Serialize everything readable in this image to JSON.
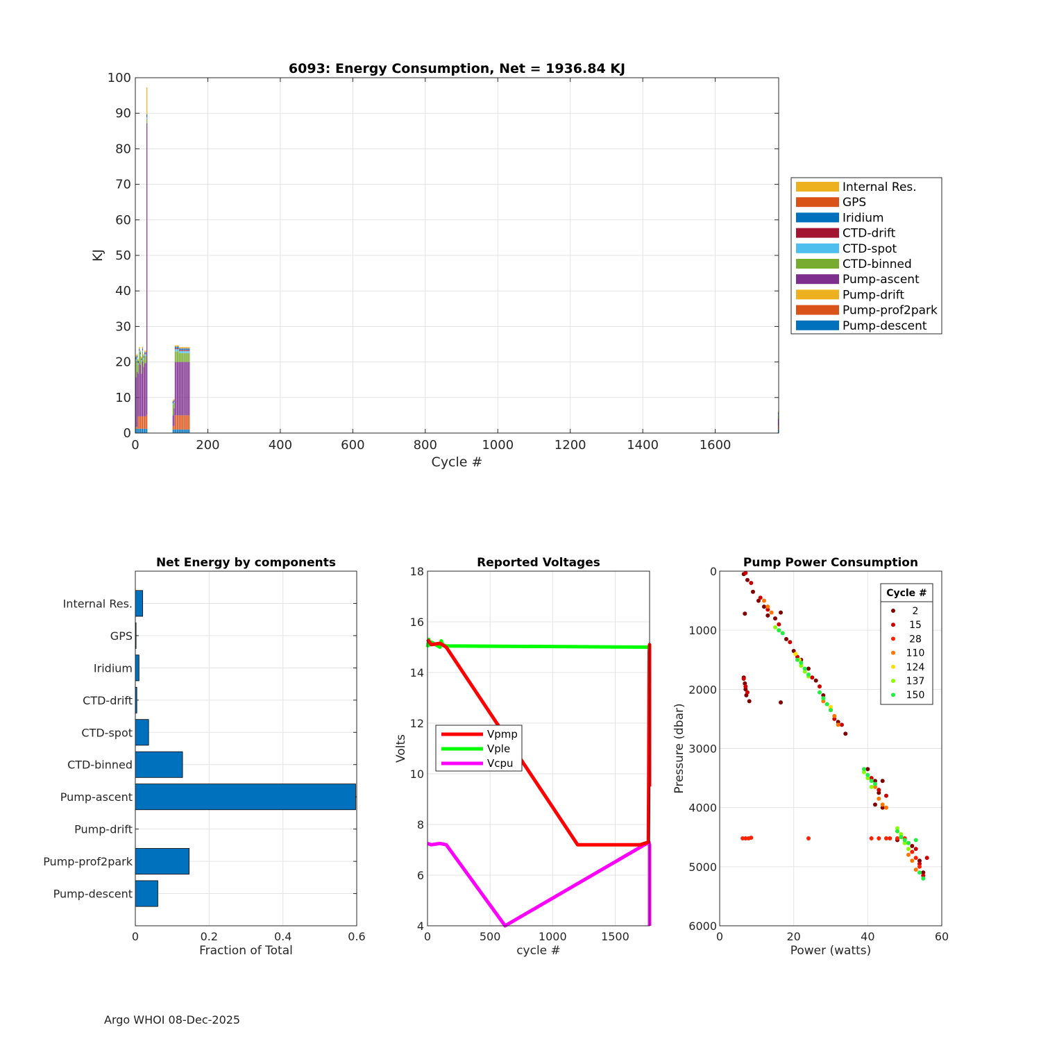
{
  "chart_data": [
    {
      "type": "bar",
      "stacked": true,
      "title": "6093: Energy Consumption,  Net = 1936.84 KJ",
      "xlabel": "Cycle #",
      "ylabel": "KJ",
      "xlim": [
        0,
        1775
      ],
      "ylim": [
        0,
        100
      ],
      "xticks": [
        0,
        200,
        400,
        600,
        800,
        1000,
        1200,
        1400,
        1600
      ],
      "yticks": [
        0,
        10,
        20,
        30,
        40,
        50,
        60,
        70,
        80,
        90,
        100
      ],
      "legend_position": "right-outside",
      "legend": [
        {
          "name": "Internal Res.",
          "color": "#EDB120"
        },
        {
          "name": "GPS",
          "color": "#D95319"
        },
        {
          "name": "Iridium",
          "color": "#0072BD"
        },
        {
          "name": "CTD-drift",
          "color": "#A2142F"
        },
        {
          "name": "CTD-spot",
          "color": "#4DBEEE"
        },
        {
          "name": "CTD-binned",
          "color": "#77AC30"
        },
        {
          "name": "Pump-ascent",
          "color": "#7E2F8E"
        },
        {
          "name": "Pump-drift",
          "color": "#EDB120"
        },
        {
          "name": "Pump-prof2park",
          "color": "#D95319"
        },
        {
          "name": "Pump-descent",
          "color": "#0072BD"
        }
      ],
      "stack_order": [
        "Pump-descent",
        "Pump-prof2park",
        "Pump-drift",
        "Pump-ascent",
        "CTD-binned",
        "CTD-spot",
        "CTD-drift",
        "Iridium",
        "GPS",
        "Internal Res."
      ],
      "x": [
        2,
        5,
        8,
        11,
        14,
        17,
        20,
        23,
        26,
        29,
        32,
        104,
        107,
        110,
        113,
        116,
        119,
        122,
        125,
        128,
        131,
        134,
        137,
        140,
        143,
        146,
        149,
        1774
      ],
      "stacks": [
        [
          1.2,
          0.5,
          0,
          14.0,
          4.5,
          0.6,
          0.2,
          0.4,
          0.1,
          0.4
        ],
        [
          1.2,
          0.5,
          0,
          15.5,
          3.6,
          0.5,
          0.2,
          0.3,
          0.1,
          0.4
        ],
        [
          1.2,
          3.5,
          0,
          12.0,
          2.5,
          0.5,
          0.2,
          0.4,
          0.1,
          0.4
        ],
        [
          1.2,
          3.5,
          0,
          15.0,
          3.0,
          0.5,
          0.2,
          0.3,
          0.1,
          0.4
        ],
        [
          1.2,
          3.5,
          0,
          14.5,
          2.5,
          0.5,
          0.2,
          0.3,
          0.1,
          0.4
        ],
        [
          1.2,
          3.5,
          0,
          12.0,
          3.3,
          0.5,
          0.2,
          0.3,
          0.1,
          0.4
        ],
        [
          1.2,
          3.5,
          0,
          15.5,
          2.6,
          0.5,
          0.2,
          0.3,
          0.1,
          0.4
        ],
        [
          1.2,
          3.5,
          0,
          14.0,
          2.0,
          0.5,
          0.2,
          0.3,
          0.1,
          0.4
        ],
        [
          1.2,
          3.5,
          0,
          15.0,
          2.0,
          0.5,
          0.2,
          0.3,
          0.1,
          0.4
        ],
        [
          1.2,
          3.5,
          0,
          15.0,
          2.0,
          0.5,
          0.2,
          0.3,
          0.1,
          0.4
        ],
        [
          1.2,
          4.0,
          0,
          82.0,
          1.2,
          0.5,
          0.3,
          0.5,
          0.1,
          7.5
        ],
        [
          1.0,
          1.0,
          0,
          3.0,
          3.0,
          0.4,
          0.2,
          0.3,
          0.1,
          0.3
        ],
        [
          1.0,
          1.0,
          0,
          5.0,
          1.5,
          0.3,
          0.1,
          0.3,
          0.1,
          0.3
        ],
        [
          1.0,
          4.0,
          0,
          15.0,
          3.0,
          0.6,
          0.3,
          0.4,
          0.1,
          0.3
        ],
        [
          1.0,
          4.0,
          0,
          15.0,
          3.0,
          0.6,
          0.3,
          0.4,
          0.1,
          0.3
        ],
        [
          1.0,
          4.0,
          0,
          15.0,
          3.0,
          0.6,
          0.3,
          0.4,
          0.1,
          0.3
        ],
        [
          1.0,
          4.0,
          0,
          15.0,
          3.0,
          0.6,
          0.3,
          0.4,
          0.1,
          0.3
        ],
        [
          1.0,
          4.0,
          0,
          15.0,
          2.5,
          0.6,
          0.3,
          0.4,
          0.1,
          0.3
        ],
        [
          1.0,
          4.0,
          0,
          15.0,
          2.5,
          0.6,
          0.3,
          0.4,
          0.1,
          0.3
        ],
        [
          1.0,
          4.0,
          0,
          15.0,
          2.5,
          0.6,
          0.3,
          0.4,
          0.1,
          0.3
        ],
        [
          1.0,
          4.0,
          0,
          15.0,
          2.5,
          0.6,
          0.3,
          0.4,
          0.1,
          0.3
        ],
        [
          1.0,
          4.0,
          0,
          15.0,
          2.5,
          0.6,
          0.3,
          0.4,
          0.1,
          0.3
        ],
        [
          1.0,
          4.0,
          0,
          15.0,
          2.5,
          0.6,
          0.3,
          0.4,
          0.1,
          0.3
        ],
        [
          1.0,
          4.0,
          0,
          15.0,
          2.5,
          0.6,
          0.3,
          0.4,
          0.1,
          0.3
        ],
        [
          1.0,
          4.0,
          0,
          15.0,
          2.5,
          0.6,
          0.3,
          0.4,
          0.1,
          0.3
        ],
        [
          1.0,
          4.0,
          0,
          15.0,
          2.5,
          0.6,
          0.3,
          0.4,
          0.1,
          0.3
        ],
        [
          1.0,
          4.0,
          0,
          15.0,
          2.5,
          0.6,
          0.3,
          0.4,
          0.1,
          0.3
        ],
        [
          1.0,
          1.0,
          0,
          2.0,
          1.0,
          0.3,
          0.1,
          0.3,
          0.1,
          0.3
        ]
      ]
    },
    {
      "type": "bar",
      "orientation": "horizontal",
      "title": "Net Energy by components",
      "xlabel": "Fraction of Total",
      "ylabel": "",
      "xlim": [
        0,
        0.6
      ],
      "xticks": [
        0,
        0.2,
        0.4,
        0.6
      ],
      "xtick_labels": [
        "0",
        "0.2",
        "0.4",
        "0.6"
      ],
      "bar_color": "#0072BD",
      "categories": [
        "Internal Res.",
        "GPS",
        "Iridium",
        "CTD-drift",
        "CTD-spot",
        "CTD-binned",
        "Pump-ascent",
        "Pump-drift",
        "Pump-prof2park",
        "Pump-descent"
      ],
      "values": [
        0.02,
        0.002,
        0.01,
        0.004,
        0.036,
        0.128,
        0.597,
        0.0,
        0.146,
        0.061
      ]
    },
    {
      "type": "line",
      "title": "Reported Voltages",
      "xlabel": "cycle #",
      "ylabel": "Volts",
      "xlim": [
        0,
        1775
      ],
      "ylim": [
        4,
        18
      ],
      "xticks": [
        0,
        500,
        1000,
        1500
      ],
      "yticks": [
        4,
        6,
        8,
        10,
        12,
        14,
        16,
        18
      ],
      "legend_position": "center-left",
      "series": [
        {
          "name": "Vpmp",
          "color": "#FF0000",
          "x": [
            0,
            30,
            100,
            150,
            1200,
            1700,
            1765,
            1768,
            1772,
            1775,
            1775
          ],
          "y": [
            15.3,
            15.1,
            15.15,
            15.0,
            7.2,
            7.2,
            7.3,
            9.5,
            14.8,
            15.1,
            9.5
          ]
        },
        {
          "name": "Vple",
          "color": "#00FF00",
          "x": [
            0,
            10,
            20,
            30,
            100,
            110,
            120,
            150,
            1772,
            1775
          ],
          "y": [
            15.0,
            15.3,
            15.1,
            15.2,
            15.0,
            15.25,
            15.1,
            15.05,
            15.0,
            15.1
          ]
        },
        {
          "name": "Vcpu",
          "color": "#FF00FF",
          "x": [
            0,
            30,
            100,
            150,
            620,
            1770,
            1772,
            1775,
            1775
          ],
          "y": [
            7.25,
            7.2,
            7.25,
            7.2,
            4.0,
            7.3,
            7.2,
            7.2,
            4.0
          ]
        }
      ]
    },
    {
      "type": "scatter",
      "title": "Pump Power Consumption",
      "xlabel": "Power (watts)",
      "ylabel": "Pressure (dbar)",
      "xlim": [
        0,
        60
      ],
      "ylim": [
        0,
        6000
      ],
      "y_reversed": true,
      "xticks": [
        0,
        20,
        40,
        60
      ],
      "yticks": [
        0,
        1000,
        2000,
        3000,
        4000,
        5000,
        6000
      ],
      "legend_title": "Cycle #",
      "legend_position": "top-right",
      "series": [
        {
          "name": "2",
          "color": "#800000",
          "points": [
            [
              6.5,
              50
            ],
            [
              7.5,
              150
            ],
            [
              9,
              350
            ],
            [
              10.5,
              500
            ],
            [
              12,
              600
            ],
            [
              13,
              750
            ],
            [
              15,
              800
            ],
            [
              16.5,
              700
            ],
            [
              6.8,
              720
            ],
            [
              6.5,
              1800
            ],
            [
              6.8,
              1900
            ],
            [
              7,
              2000
            ],
            [
              7.2,
              2100
            ],
            [
              8,
              2200
            ],
            [
              16.5,
              2220
            ],
            [
              18,
              1150
            ],
            [
              20,
              1350
            ],
            [
              22,
              1500
            ],
            [
              24,
              1650
            ],
            [
              26,
              1850
            ],
            [
              28,
              2100
            ],
            [
              30,
              2350
            ],
            [
              32,
              2550
            ],
            [
              34,
              2750
            ],
            [
              40,
              3350
            ],
            [
              42,
              3550
            ],
            [
              43,
              3750
            ],
            [
              44,
              3550
            ],
            [
              42,
              3950
            ],
            [
              44,
              4000
            ],
            [
              48,
              4550
            ],
            [
              52,
              4650
            ],
            [
              54,
              4900
            ],
            [
              55,
              5100
            ]
          ]
        },
        {
          "name": "15",
          "color": "#CC0000",
          "points": [
            [
              7,
              30
            ],
            [
              8.5,
              200
            ],
            [
              11,
              450
            ],
            [
              13,
              650
            ],
            [
              16,
              900
            ],
            [
              19,
              1200
            ],
            [
              6.5,
              1820
            ],
            [
              7,
              1950
            ],
            [
              7.5,
              2050
            ],
            [
              21,
              1450
            ],
            [
              25,
              1800
            ],
            [
              27,
              1950
            ],
            [
              31,
              2500
            ],
            [
              33,
              2600
            ],
            [
              41,
              3500
            ],
            [
              43,
              3700
            ],
            [
              45,
              3800
            ],
            [
              49,
              4500
            ],
            [
              53,
              4700
            ],
            [
              54,
              4950
            ],
            [
              56,
              4850
            ],
            [
              55,
              5150
            ]
          ]
        },
        {
          "name": "28",
          "color": "#FF2200",
          "points": [
            [
              6.2,
              4520
            ],
            [
              7,
              4520
            ],
            [
              7.8,
              4520
            ],
            [
              8.5,
              4510
            ],
            [
              24,
              4520
            ],
            [
              41,
              4520
            ],
            [
              43,
              4520
            ],
            [
              45,
              4520
            ],
            [
              46,
              4520
            ],
            [
              48,
              4520
            ],
            [
              50,
              4520
            ],
            [
              51,
              4600
            ],
            [
              52,
              4750
            ],
            [
              53,
              4850
            ],
            [
              54,
              5000
            ]
          ]
        },
        {
          "name": "110",
          "color": "#FF7700",
          "points": [
            [
              12,
              500
            ],
            [
              13,
              600
            ],
            [
              14,
              700
            ],
            [
              28,
              2200
            ],
            [
              31,
              2450
            ],
            [
              32,
              2600
            ],
            [
              42,
              3650
            ],
            [
              43,
              3850
            ],
            [
              44,
              3950
            ],
            [
              45,
              4000
            ],
            [
              50,
              4600
            ],
            [
              51,
              4800
            ],
            [
              52,
              4900
            ],
            [
              53,
              5050
            ]
          ]
        },
        {
          "name": "124",
          "color": "#FFDD00",
          "points": [
            [
              20.5,
              1400
            ],
            [
              21.5,
              1500
            ],
            [
              29,
              2250
            ],
            [
              30,
              2300
            ],
            [
              48,
              4400
            ],
            [
              49,
              4500
            ]
          ]
        },
        {
          "name": "137",
          "color": "#88FF00",
          "points": [
            [
              15,
              950
            ],
            [
              16,
              1000
            ],
            [
              22,
              1600
            ],
            [
              23,
              1700
            ],
            [
              24,
              1780
            ],
            [
              39,
              3400
            ],
            [
              40,
              3500
            ],
            [
              41,
              3650
            ],
            [
              48,
              4350
            ],
            [
              49,
              4450
            ],
            [
              50,
              4600
            ],
            [
              51,
              4700
            ]
          ]
        },
        {
          "name": "150",
          "color": "#22EE44",
          "points": [
            [
              16,
              1000
            ],
            [
              17,
              1050
            ],
            [
              21,
              1500
            ],
            [
              22,
              1550
            ],
            [
              23,
              1650
            ],
            [
              24,
              1750
            ],
            [
              27,
              2050
            ],
            [
              28,
              2150
            ],
            [
              29,
              2250
            ],
            [
              30,
              2350
            ],
            [
              39,
              3350
            ],
            [
              40,
              3450
            ],
            [
              41,
              3550
            ],
            [
              42,
              3600
            ],
            [
              48,
              4400
            ],
            [
              49,
              4500
            ],
            [
              50,
              4550
            ],
            [
              51,
              4600
            ],
            [
              53,
              4550
            ],
            [
              54,
              5100
            ],
            [
              55,
              5200
            ]
          ]
        }
      ]
    }
  ],
  "footer": "Argo WHOI 08-Dec-2025"
}
